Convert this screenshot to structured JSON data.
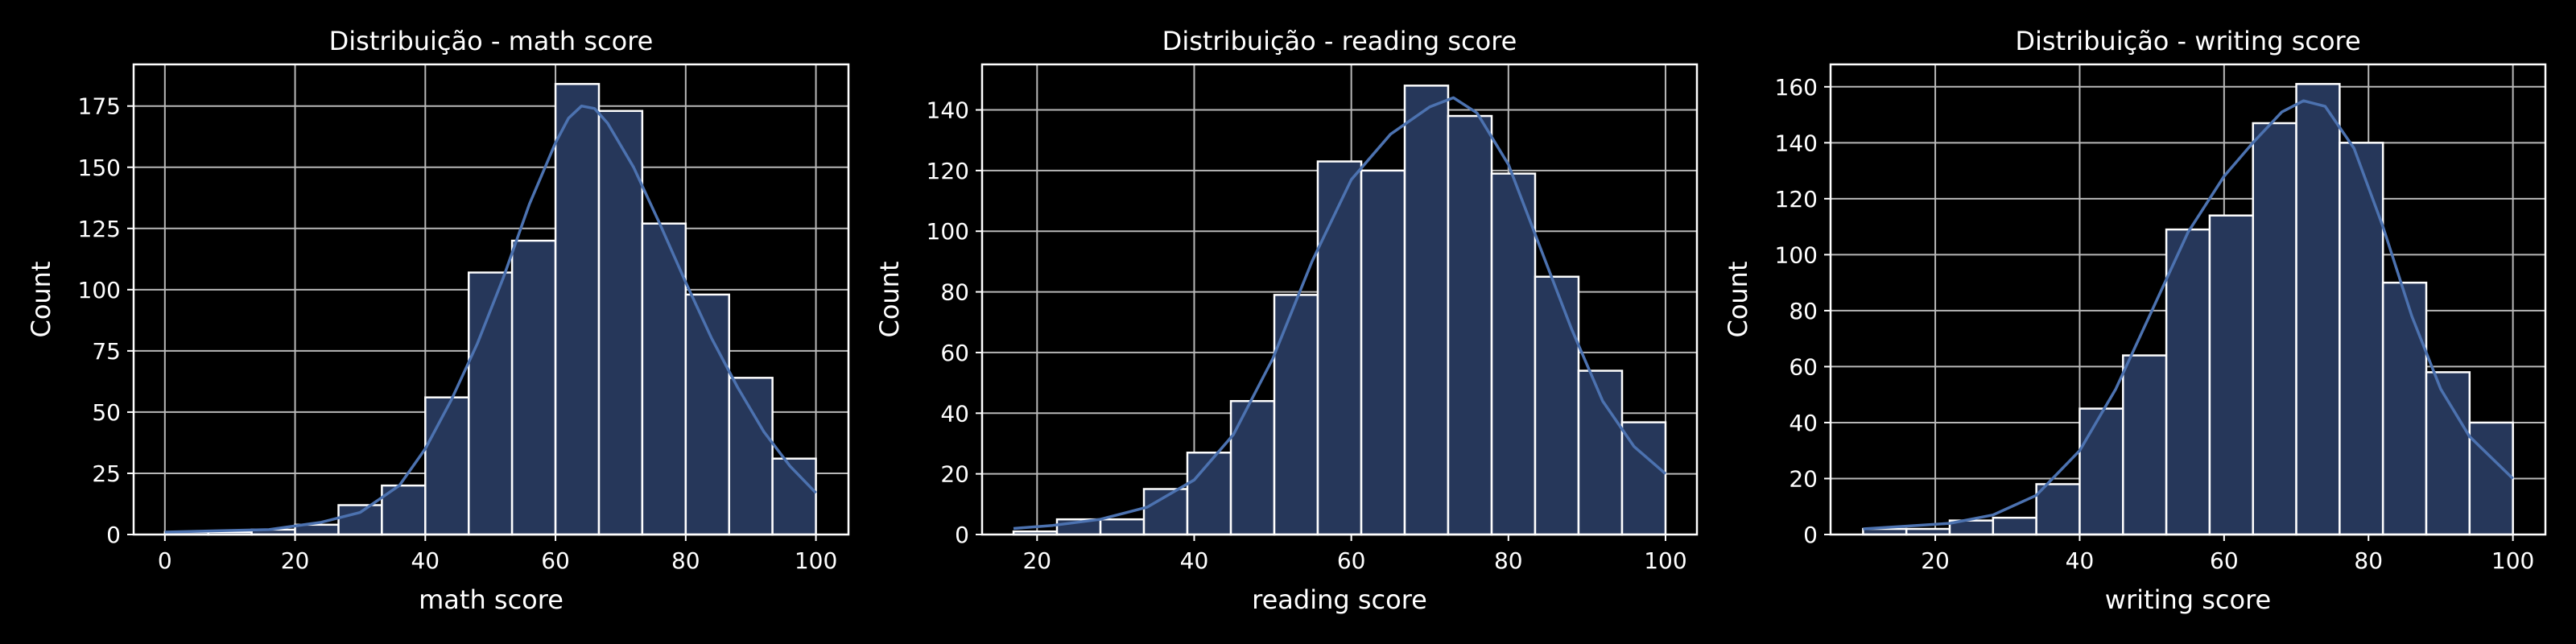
{
  "colors": {
    "background": "#000000",
    "bar_fill": "#26375a",
    "bar_edge": "#ffffff",
    "kde_line": "#4c72b0",
    "grid": "#b8b8b8",
    "text": "#ffffff"
  },
  "chart_data": [
    {
      "type": "bar",
      "title": "Distribuição - math score",
      "xlabel": "math score",
      "ylabel": "Count",
      "xlim": [
        -4.8,
        105
      ],
      "ylim": [
        0,
        192
      ],
      "xticks": [
        0,
        20,
        40,
        60,
        80,
        100
      ],
      "yticks": [
        0,
        25,
        50,
        75,
        100,
        125,
        150,
        175
      ],
      "grid": true,
      "bins": {
        "edges": [
          0,
          6.67,
          13.33,
          20,
          26.67,
          33.33,
          40,
          46.67,
          53.33,
          60,
          66.67,
          73.33,
          80,
          86.67,
          93.33,
          100
        ],
        "counts": [
          1,
          1,
          2,
          4,
          12,
          20,
          56,
          107,
          120,
          184,
          173,
          127,
          98,
          64,
          31
        ]
      },
      "kde": {
        "x": [
          0,
          8,
          16,
          24,
          30,
          36,
          40,
          44,
          48,
          52,
          56,
          60,
          62,
          64,
          66,
          68,
          72,
          76,
          80,
          84,
          88,
          92,
          96,
          100
        ],
        "y": [
          1,
          1.5,
          2,
          5,
          9,
          20,
          35,
          55,
          78,
          105,
          135,
          160,
          170,
          175,
          174,
          168,
          150,
          127,
          103,
          80,
          60,
          42,
          28,
          17
        ]
      }
    },
    {
      "type": "bar",
      "title": "Distribuição - reading score",
      "xlabel": "reading score",
      "ylabel": "Count",
      "xlim": [
        13,
        104
      ],
      "ylim": [
        0,
        155
      ],
      "xticks": [
        20,
        40,
        60,
        80,
        100
      ],
      "yticks": [
        0,
        20,
        40,
        60,
        80,
        100,
        120,
        140
      ],
      "grid": true,
      "bins": {
        "edges": [
          17,
          22.53,
          28.07,
          33.6,
          39.13,
          44.67,
          50.2,
          55.73,
          61.27,
          66.8,
          72.33,
          77.87,
          83.4,
          88.93,
          94.47,
          100
        ],
        "counts": [
          1,
          5,
          5,
          15,
          27,
          44,
          79,
          123,
          120,
          148,
          138,
          119,
          85,
          54,
          37
        ]
      },
      "kde": {
        "x": [
          17,
          22,
          28,
          34,
          40,
          45,
          50,
          55,
          60,
          65,
          70,
          73,
          76,
          80,
          84,
          88,
          92,
          96,
          100
        ],
        "y": [
          2,
          3,
          5,
          9,
          18,
          33,
          58,
          90,
          117,
          132,
          141,
          144,
          139,
          122,
          95,
          68,
          44,
          29,
          20
        ]
      }
    },
    {
      "type": "bar",
      "title": "Distribuição - writing score",
      "xlabel": "writing score",
      "ylabel": "Count",
      "xlim": [
        5.5,
        104.5
      ],
      "ylim": [
        0,
        168
      ],
      "xticks": [
        20,
        40,
        60,
        80,
        100
      ],
      "yticks": [
        0,
        20,
        40,
        60,
        80,
        100,
        120,
        140,
        160
      ],
      "grid": true,
      "bins": {
        "edges": [
          10,
          16,
          22,
          28,
          34,
          40,
          46,
          52,
          58,
          64,
          70,
          76,
          82,
          88,
          94,
          100
        ],
        "counts": [
          2,
          2,
          5,
          6,
          18,
          45,
          64,
          109,
          114,
          147,
          161,
          140,
          90,
          58,
          40
        ]
      },
      "kde": {
        "x": [
          10,
          16,
          22,
          28,
          34,
          40,
          45,
          50,
          55,
          60,
          64,
          68,
          71,
          74,
          78,
          82,
          86,
          90,
          94,
          100
        ],
        "y": [
          2,
          3,
          4,
          7,
          14,
          30,
          52,
          80,
          108,
          128,
          140,
          151,
          155,
          153,
          138,
          110,
          78,
          52,
          35,
          20
        ]
      }
    }
  ]
}
